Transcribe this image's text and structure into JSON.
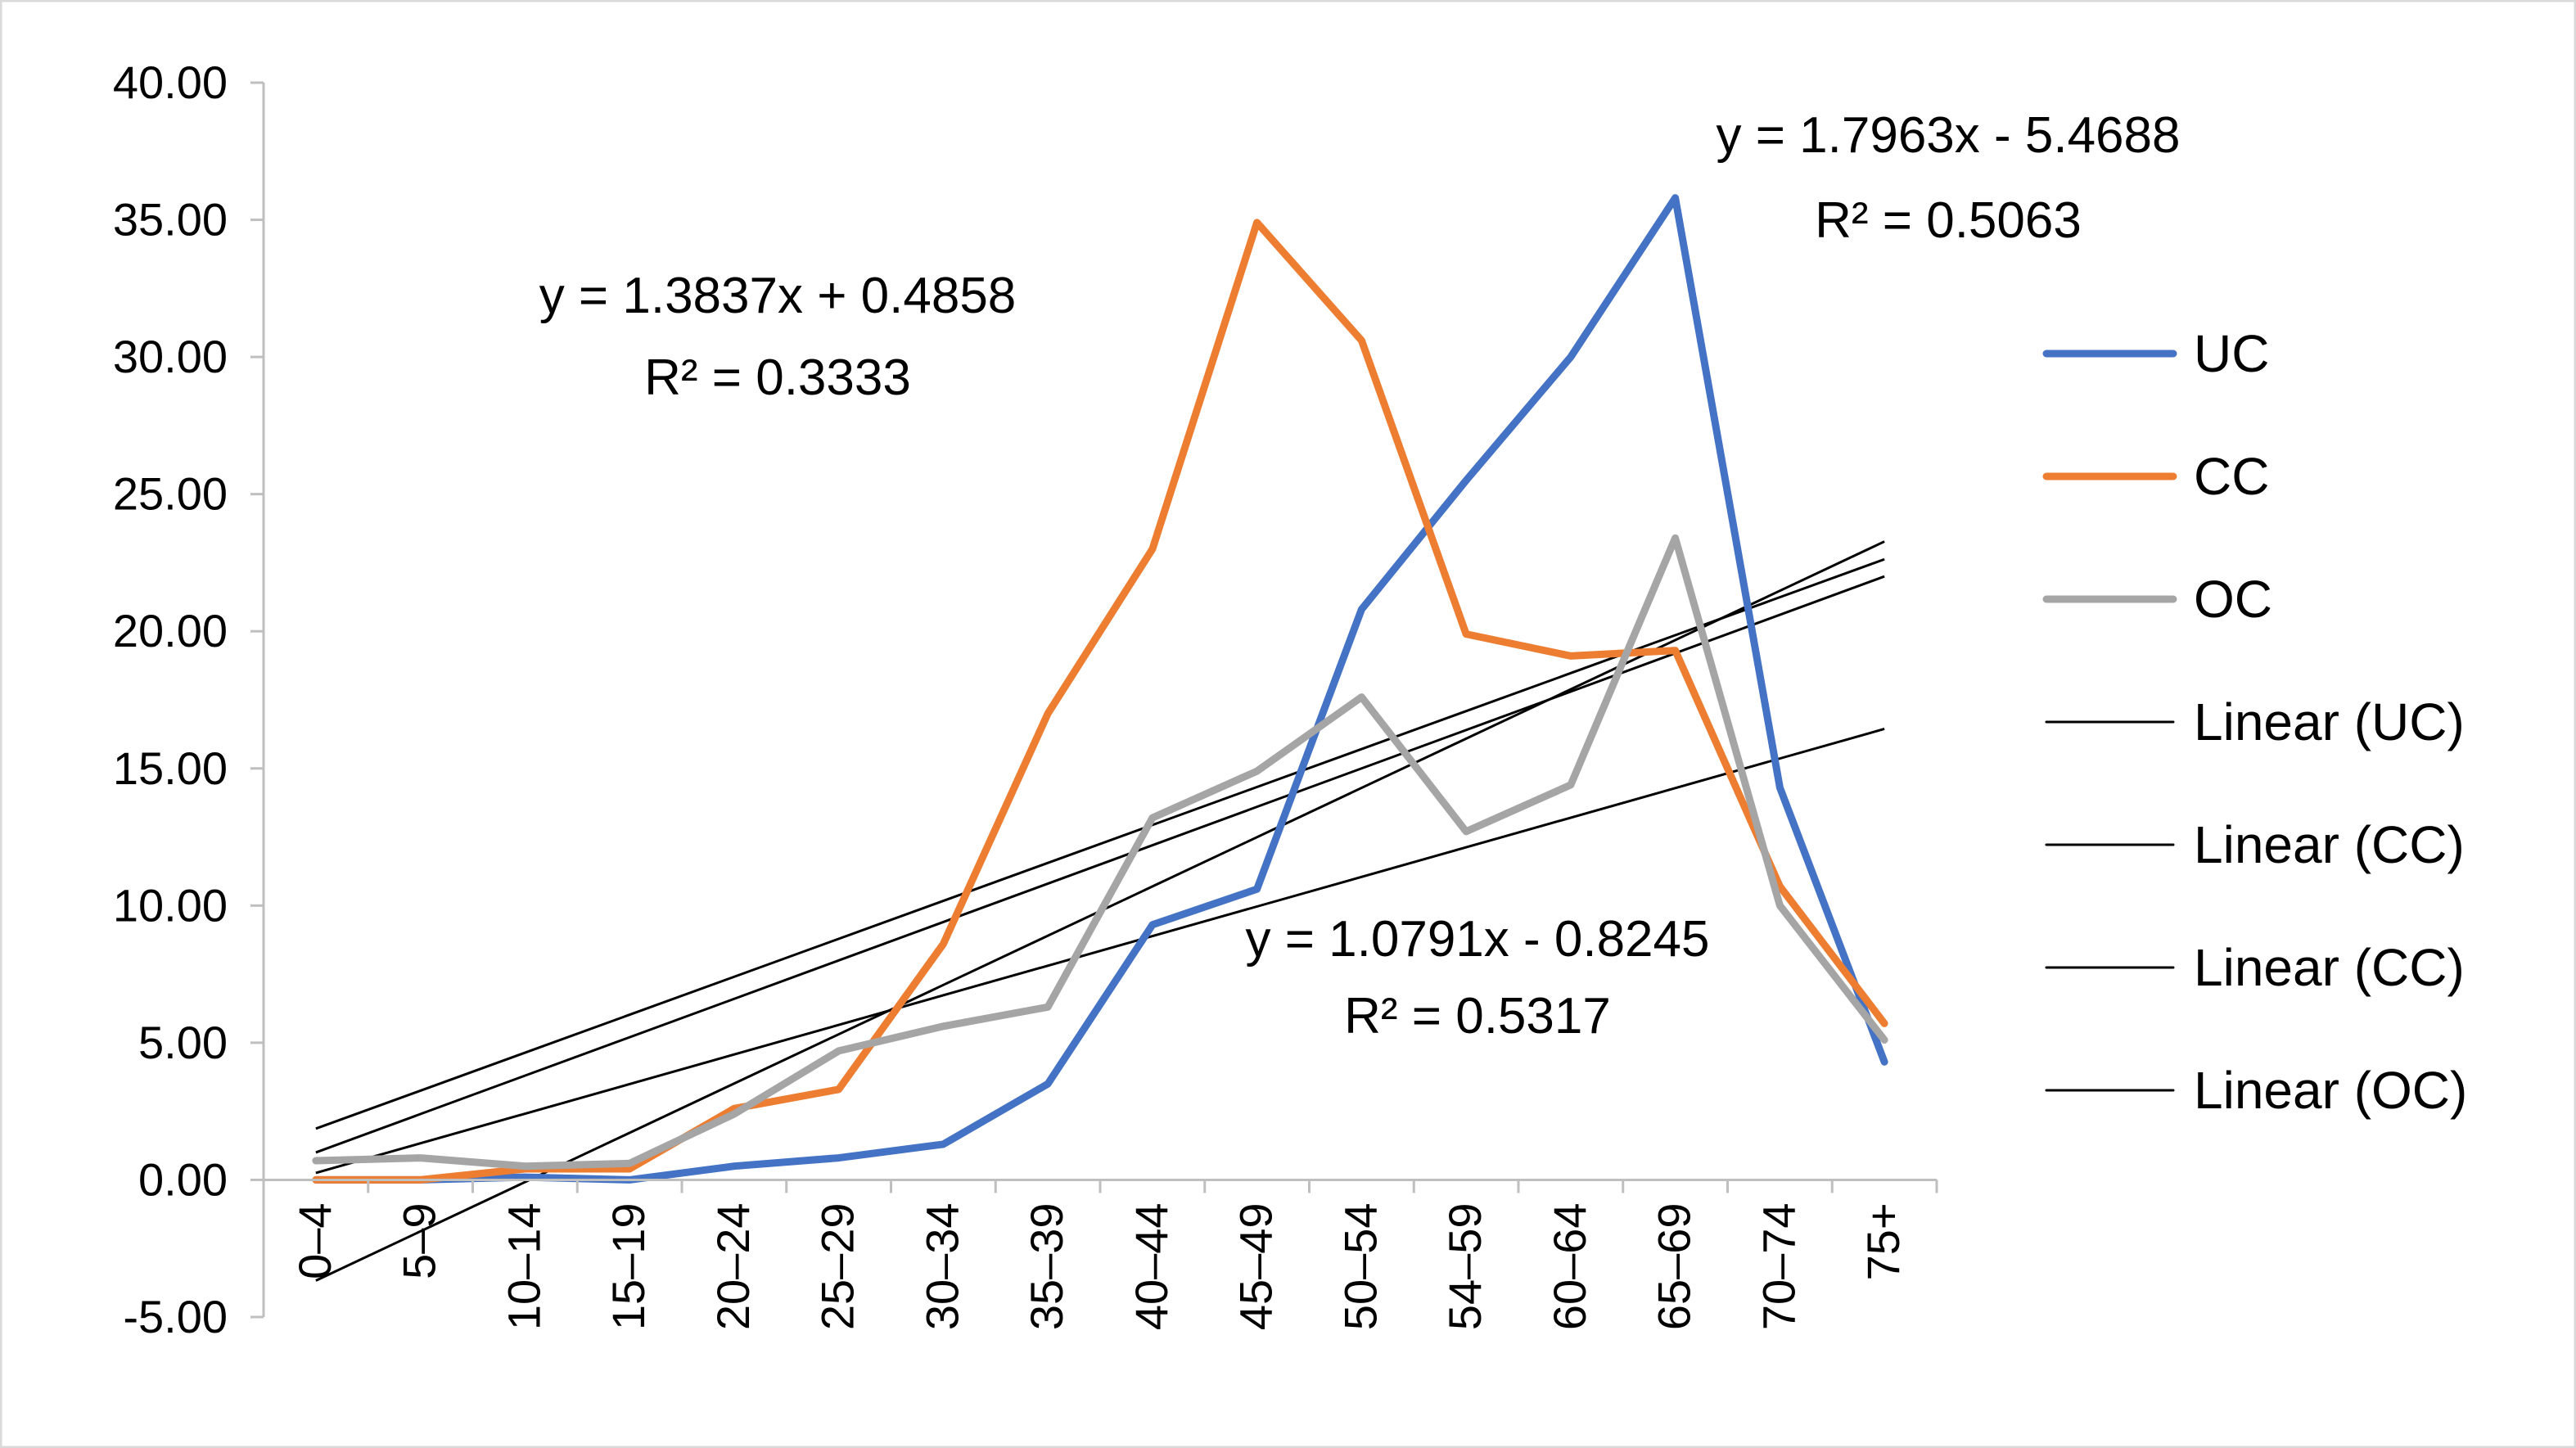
{
  "chart_data": {
    "type": "line",
    "categories": [
      "0–4",
      "5–9",
      "10–14",
      "15–19",
      "20–24",
      "25–29",
      "30–34",
      "35–39",
      "40–44",
      "45–49",
      "50–54",
      "54–59",
      "60–64",
      "65–69",
      "70–74",
      "75+"
    ],
    "y_ticks": [
      "40.00",
      "35.00",
      "30.00",
      "25.00",
      "20.00",
      "15.00",
      "10.00",
      "5.00",
      "0.00",
      "-5.00"
    ],
    "ylim": [
      -5,
      40
    ],
    "grid": false,
    "legend_position": "right",
    "series": [
      {
        "name": "UC",
        "color": "#4472C4",
        "values": [
          0.0,
          0.0,
          0.1,
          0.0,
          0.5,
          0.8,
          1.3,
          3.5,
          9.3,
          10.6,
          20.8,
          25.5,
          30.0,
          35.8,
          14.3,
          4.3
        ]
      },
      {
        "name": "CC",
        "color": "#ED7D31",
        "values": [
          0.0,
          0.0,
          0.4,
          0.4,
          2.6,
          3.3,
          8.6,
          17.0,
          23.0,
          34.9,
          30.6,
          19.9,
          19.1,
          19.3,
          10.7,
          5.7
        ]
      },
      {
        "name": "OC",
        "color": "#A5A5A5",
        "values": [
          0.7,
          0.8,
          0.5,
          0.6,
          2.4,
          4.7,
          5.6,
          6.3,
          13.2,
          14.9,
          17.6,
          12.7,
          14.4,
          23.4,
          10.0,
          5.1
        ]
      }
    ],
    "trendlines": [
      {
        "legend": "Linear (UC)",
        "slope": 1.7963,
        "intercept": -5.4688,
        "equation": "y = 1.7963x - 5.4688",
        "r2": "R² = 0.5063"
      },
      {
        "legend": "Linear (CC)",
        "slope": 1.3837,
        "intercept": 0.4858,
        "equation": "y = 1.3837x + 0.4858",
        "r2": "R² = 0.3333"
      },
      {
        "legend": "Linear (CC)",
        "slope": 1.0791,
        "intercept": -0.8245,
        "equation": "y = 1.0791x - 0.8245",
        "r2": "R² = 0.5317"
      },
      {
        "legend": "Linear (OC)",
        "slope": 1.4,
        "intercept": -0.4,
        "equation": "",
        "r2": ""
      }
    ],
    "trendline_color": "#000000"
  }
}
